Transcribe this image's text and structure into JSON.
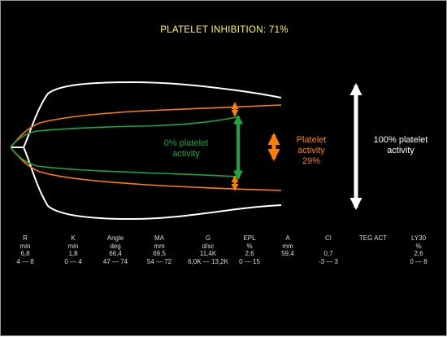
{
  "title": "PLATELET INHIBITION: 71%",
  "colors": {
    "background": "#000000",
    "title": "#ffff33",
    "green": "#1aa83a",
    "orange": "#ff7f00",
    "white": "#ffffff",
    "text": "#dddddd"
  },
  "labels": {
    "green": [
      "0% platelet",
      "activity"
    ],
    "orange": [
      "Platelet",
      "activity",
      "29%"
    ],
    "white": [
      "100% platelet",
      "activity"
    ]
  },
  "parameters": [
    {
      "name": "R",
      "unit": "min",
      "value": "6,8",
      "range": "4 — 8"
    },
    {
      "name": "K",
      "unit": "min",
      "value": "1,8",
      "range": "0 — 4"
    },
    {
      "name": "Angle",
      "unit": "deg",
      "value": "66,4",
      "range": "47 — 74"
    },
    {
      "name": "MA",
      "unit": "mm",
      "value": "69,5",
      "range": "54 — 72"
    },
    {
      "name": "G",
      "unit": "d/sc",
      "value": "11,4K",
      "range": "6,0K — 13,2K"
    },
    {
      "name": "EPL",
      "unit": "%",
      "value": "2,6",
      "range": "0 — 15"
    },
    {
      "name": "A",
      "unit": "mm",
      "value": "59,4",
      "range": ""
    },
    {
      "name": "CI",
      "unit": "",
      "value": "0,7",
      "range": "-3 — 3"
    },
    {
      "name": "TEG ACT",
      "unit": "",
      "value": "",
      "range": ""
    },
    {
      "name": "LY30",
      "unit": "%",
      "value": "2,6",
      "range": "0 — 8"
    }
  ]
}
